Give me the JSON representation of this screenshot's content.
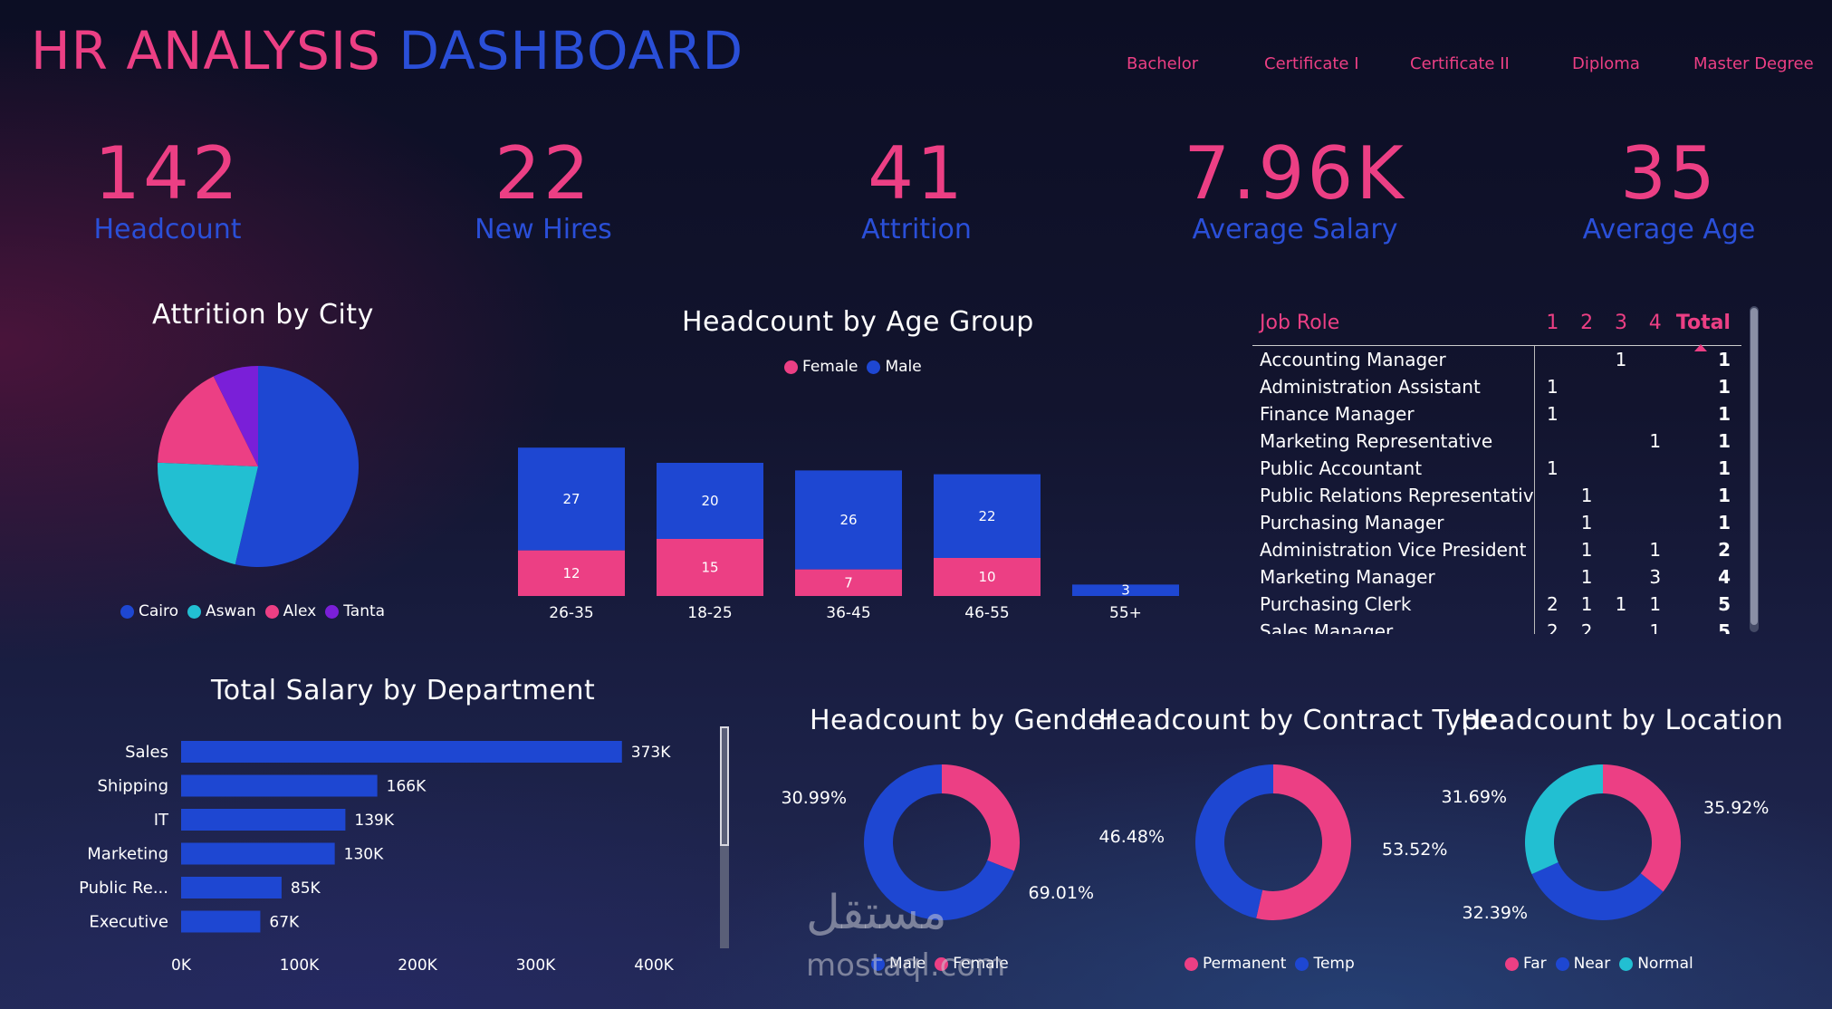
{
  "header": {
    "title_part1": "HR ANALYSIS",
    "title_part2": "DASHBOARD"
  },
  "filters": [
    "Bachelor",
    "Certificate I",
    "Certificate II",
    "Diploma",
    "Master Degree"
  ],
  "kpis": [
    {
      "value": "142",
      "label": "Headcount"
    },
    {
      "value": "22",
      "label": "New Hires"
    },
    {
      "value": "41",
      "label": "Attrition"
    },
    {
      "value": "7.96K",
      "label": "Average Salary"
    },
    {
      "value": "35",
      "label": "Average Age"
    }
  ],
  "colors": {
    "pink": "#ec3f84",
    "blue": "#1e47d2",
    "cyan": "#22bfd2",
    "purple": "#7a1fd8"
  },
  "chart_data": [
    {
      "id": "attrition-by-city",
      "type": "pie",
      "title": "Attrition by City",
      "categories": [
        "Cairo",
        "Aswan",
        "Alex",
        "Tanta"
      ],
      "values": [
        22,
        9,
        7,
        3
      ],
      "colors": [
        "#1e47d2",
        "#22bfd2",
        "#ec3f84",
        "#7a1fd8"
      ],
      "legend": "bottom"
    },
    {
      "id": "headcount-by-age-group",
      "type": "bar",
      "stacked": true,
      "title": "Headcount by Age Group",
      "categories": [
        "26-35",
        "18-25",
        "36-45",
        "46-55",
        "55+"
      ],
      "series": [
        {
          "name": "Female",
          "values": [
            12,
            15,
            7,
            10,
            0
          ],
          "color": "#ec3f84"
        },
        {
          "name": "Male",
          "values": [
            27,
            20,
            26,
            22,
            3
          ],
          "color": "#1e47d2"
        }
      ],
      "legend": "top"
    },
    {
      "id": "total-salary-by-department",
      "type": "bar",
      "orientation": "horizontal",
      "title": "Total Salary by Department",
      "categories": [
        "Sales",
        "Shipping",
        "IT",
        "Marketing",
        "Public Re...",
        "Executive"
      ],
      "values": [
        373000,
        166000,
        139000,
        130000,
        85000,
        67000
      ],
      "value_labels": [
        "373K",
        "166K",
        "139K",
        "130K",
        "85K",
        "67K"
      ],
      "x_ticks": [
        "0K",
        "100K",
        "200K",
        "300K",
        "400K"
      ],
      "xlim": [
        0,
        400000
      ],
      "color": "#1e47d2"
    },
    {
      "id": "headcount-by-gender",
      "type": "pie",
      "donut": true,
      "title": "Headcount by Gender",
      "categories": [
        "Male",
        "Female"
      ],
      "values": [
        69.01,
        30.99
      ],
      "labels": [
        "69.01%",
        "30.99%"
      ],
      "colors": [
        "#1e47d2",
        "#ec3f84"
      ],
      "start": "top-clockwise-female-first",
      "legend": "bottom"
    },
    {
      "id": "headcount-by-contract-type",
      "type": "pie",
      "donut": true,
      "title": "Headcount by Contract Type",
      "categories": [
        "Permanent",
        "Temp"
      ],
      "values": [
        53.52,
        46.48
      ],
      "labels": [
        "53.52%",
        "46.48%"
      ],
      "colors": [
        "#ec3f84",
        "#1e47d2"
      ],
      "legend": "bottom"
    },
    {
      "id": "headcount-by-location",
      "type": "pie",
      "donut": true,
      "title": "Headcount by Location",
      "categories": [
        "Far",
        "Near",
        "Normal"
      ],
      "values": [
        35.92,
        32.39,
        31.69
      ],
      "labels": [
        "35.92%",
        "32.39%",
        "31.69%"
      ],
      "colors": [
        "#ec3f84",
        "#1e47d2",
        "#22bfd2"
      ],
      "legend": "bottom"
    }
  ],
  "job_table": {
    "headers": [
      "Job Role",
      "1",
      "2",
      "3",
      "4",
      "Total"
    ],
    "rows": [
      [
        "Accounting Manager",
        "",
        "",
        "1",
        "",
        "1"
      ],
      [
        "Administration Assistant",
        "1",
        "",
        "",
        "",
        "1"
      ],
      [
        "Finance Manager",
        "1",
        "",
        "",
        "",
        "1"
      ],
      [
        "Marketing Representative",
        "",
        "",
        "",
        "1",
        "1"
      ],
      [
        "Public Accountant",
        "1",
        "",
        "",
        "",
        "1"
      ],
      [
        "Public Relations Representative",
        "",
        "1",
        "",
        "",
        "1"
      ],
      [
        "Purchasing Manager",
        "",
        "1",
        "",
        "",
        "1"
      ],
      [
        "Administration Vice President",
        "",
        "1",
        "",
        "1",
        "2"
      ],
      [
        "Marketing Manager",
        "",
        "1",
        "",
        "3",
        "4"
      ],
      [
        "Purchasing Clerk",
        "2",
        "1",
        "1",
        "1",
        "5"
      ],
      [
        "Sales Manager",
        "2",
        "2",
        "",
        "1",
        "5"
      ]
    ]
  },
  "watermark": {
    "arabic": "مستقل",
    "latin": "mostaql.com"
  }
}
